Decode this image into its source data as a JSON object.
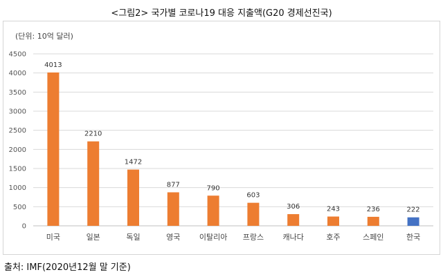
{
  "title": "<그림2> 국가별 코로나19 대응 지출액(G20 경제선진국)",
  "source": "출처: IMF(2020년12월 말 기준)",
  "colors": {
    "default_bar": "#ED7D31",
    "highlight_bar": "#4472C4",
    "grid": "#d9d9d9"
  },
  "chart_data": {
    "type": "bar",
    "title": "<그림2> 국가별 코로나19 대응 지출액(G20 경제선진국)",
    "unit_label": "(단위: 10억 달러)",
    "categories": [
      "미국",
      "일본",
      "독일",
      "영국",
      "이탈리아",
      "프랑스",
      "캐나다",
      "호주",
      "스페인",
      "한국"
    ],
    "values": [
      4013,
      2210,
      1472,
      877,
      790,
      603,
      306,
      243,
      236,
      222
    ],
    "highlight_category": "한국",
    "data_labels": [
      "4013",
      "2210",
      "1472",
      "877",
      "790",
      "603",
      "306",
      "243",
      "236",
      "222"
    ],
    "ylim": [
      0,
      4500
    ],
    "yticks": [
      0,
      500,
      1000,
      1500,
      2000,
      2500,
      3000,
      3500,
      4000,
      4500
    ],
    "grid": true,
    "legend": "none"
  }
}
